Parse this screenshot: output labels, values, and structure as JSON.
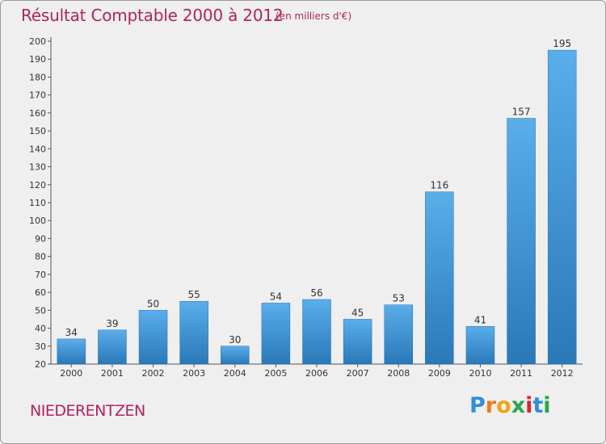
{
  "header": {
    "title": "Résultat Comptable 2000 à 2012",
    "subtitle": "(en milliers d'€)"
  },
  "footer": {
    "commune": "NIEDERENTZEN",
    "logo": [
      "P",
      "r",
      "o",
      "x",
      "i",
      "t",
      "i"
    ]
  },
  "colors": {
    "title": "#b0245c",
    "bar_top": "#5aaeea",
    "bar_bottom": "#2a78b8",
    "background": "#efefef"
  },
  "chart_data": {
    "type": "bar",
    "title": "Résultat Comptable 2000 à 2012",
    "subtitle": "(en milliers d'€)",
    "xlabel": "",
    "ylabel": "",
    "categories": [
      "2000",
      "2001",
      "2002",
      "2003",
      "2004",
      "2005",
      "2006",
      "2007",
      "2008",
      "2009",
      "2010",
      "2011",
      "2012"
    ],
    "values": [
      34,
      39,
      50,
      55,
      30,
      54,
      56,
      45,
      53,
      116,
      41,
      157,
      195
    ],
    "ylim": [
      20,
      200
    ],
    "yticks": [
      20,
      30,
      40,
      50,
      60,
      70,
      80,
      90,
      100,
      110,
      120,
      130,
      140,
      150,
      160,
      170,
      180,
      190,
      200
    ],
    "grid": false,
    "data_labels": true
  }
}
